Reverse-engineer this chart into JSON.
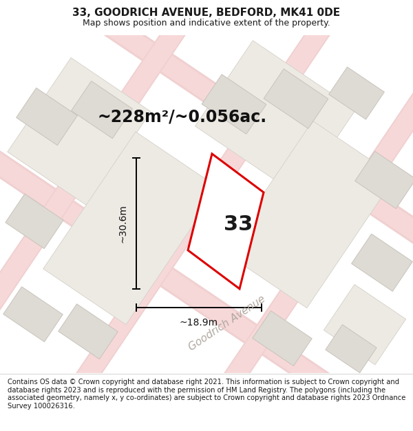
{
  "title": "33, GOODRICH AVENUE, BEDFORD, MK41 0DE",
  "subtitle": "Map shows position and indicative extent of the property.",
  "footer": "Contains OS data © Crown copyright and database right 2021. This information is subject to Crown copyright and database rights 2023 and is reproduced with the permission of HM Land Registry. The polygons (including the associated geometry, namely x, y co-ordinates) are subject to Crown copyright and database rights 2023 Ordnance Survey 100026316.",
  "area_label": "~228m²/~0.056ac.",
  "width_label": "~18.9m",
  "height_label": "~30.6m",
  "number_label": "33",
  "map_bg": "#f7f2ee",
  "road_fill": "#f7d8d8",
  "road_edge": "#e8b8b8",
  "building_color": "#dedad4",
  "building_edge": "#c8c4bc",
  "plot_color": "#ffffff",
  "plot_edge": "#dd0000",
  "block_color": "#edeae4",
  "block_edge": "#d4d0c8",
  "road_label": "Goodrich Avenue",
  "road_label_color": "#b0a8a0",
  "road_label_rotation": -34,
  "title_fontsize": 11,
  "subtitle_fontsize": 9,
  "footer_fontsize": 7.2,
  "area_fontsize": 17,
  "dim_fontsize": 10,
  "num_fontsize": 22,
  "road_label_fontsize": 11
}
